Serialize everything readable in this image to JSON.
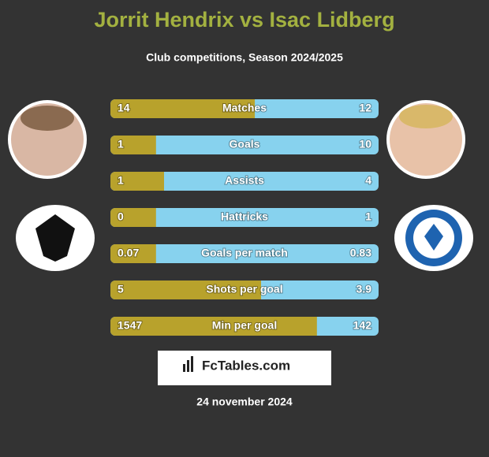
{
  "chart_data": {
    "type": "bar",
    "title": "Jorrit Hendrix vs Isac Lidberg",
    "subtitle": "Club competitions, Season 2024/2025",
    "categories": [
      "Matches",
      "Goals",
      "Assists",
      "Hattricks",
      "Goals per match",
      "Shots per goal",
      "Min per goal"
    ],
    "series": [
      {
        "color": "#b8a22c",
        "values": [
          14,
          1,
          1,
          0,
          0.07,
          5,
          1547
        ]
      },
      {
        "color": "#87d2ee",
        "values": [
          12,
          10,
          4,
          1,
          0.83,
          3.9,
          142
        ]
      }
    ],
    "source": "FcTables.com",
    "date": "24 november 2024"
  }
}
